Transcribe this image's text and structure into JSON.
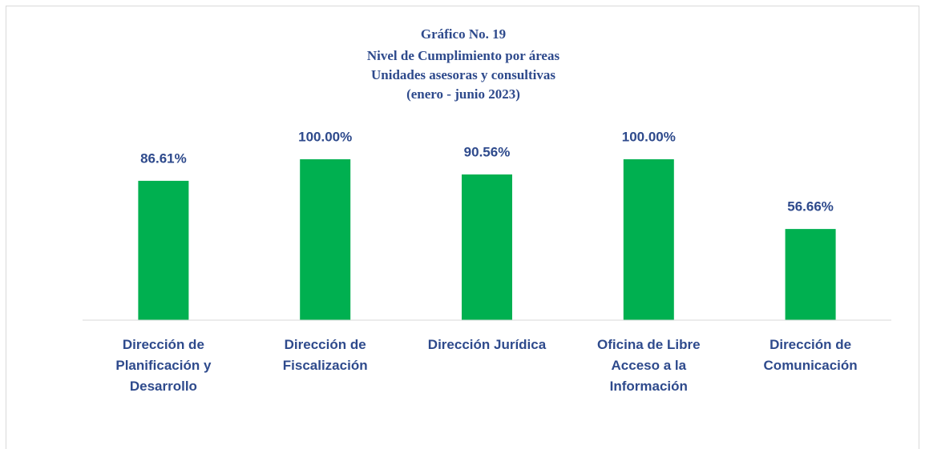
{
  "chart_data": {
    "type": "bar",
    "title": "Gráfico No. 19",
    "subtitle": [
      "Nivel de Cumplimiento por áreas",
      "Unidades asesoras y consultivas",
      "(enero - junio 2023)"
    ],
    "categories": [
      "Dirección de Planificación y Desarrollo",
      "Dirección de Fiscalización",
      "Dirección Jurídica",
      "Oficina de Libre Acceso a la Información",
      "Dirección de Comunicación"
    ],
    "values": [
      86.61,
      100,
      90.56,
      100,
      56.66
    ],
    "value_labels": [
      "86.61%",
      "100.00%",
      "90.56%",
      "100.00%",
      "56.66%"
    ],
    "color": "#00b050",
    "ylim": [
      0,
      100
    ]
  }
}
